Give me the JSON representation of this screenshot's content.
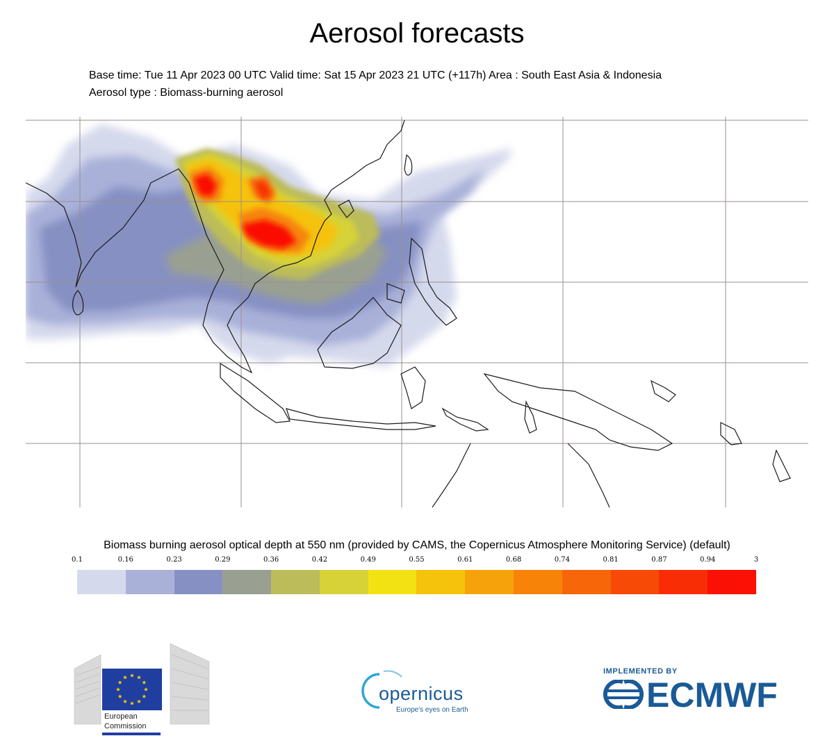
{
  "header": {
    "title": "Aerosol forecasts",
    "meta_line1": "Base time: Tue 11 Apr 2023 00 UTC Valid time: Sat 15 Apr 2023 21 UTC (+117h) Area : South East Asia & Indonesia",
    "meta_line2": "Aerosol type : Biomass-burning aerosol"
  },
  "legend": {
    "title": "Biomass burning aerosol optical depth at 550 nm (provided by CAMS, the Copernicus Atmosphere Monitoring Service) (default)",
    "ticks": [
      "0.1",
      "0.16",
      "0.23",
      "0.29",
      "0.36",
      "0.42",
      "0.49",
      "0.55",
      "0.61",
      "0.68",
      "0.74",
      "0.81",
      "0.87",
      "0.94",
      "3"
    ],
    "colors": [
      "#d5d9ec",
      "#a9b1d9",
      "#8690c2",
      "#9aa091",
      "#bcbc5a",
      "#d7d238",
      "#f2e214",
      "#f5c20c",
      "#f6a20a",
      "#f78409",
      "#f76608",
      "#f84a07",
      "#f92d05",
      "#fa1004"
    ]
  },
  "logos": {
    "ec_line1": "European",
    "ec_line2": "Commission",
    "copernicus_word": "opernicus",
    "copernicus_tagline": "Europe's eyes on Earth",
    "ecmwf_implemented": "IMPLEMENTED BY",
    "ecmwf_word": "ECMWF"
  },
  "colors": {
    "brand_blue": "#1a5a96",
    "eu_blue": "#1f3ea0",
    "eu_star": "#ffd400"
  }
}
